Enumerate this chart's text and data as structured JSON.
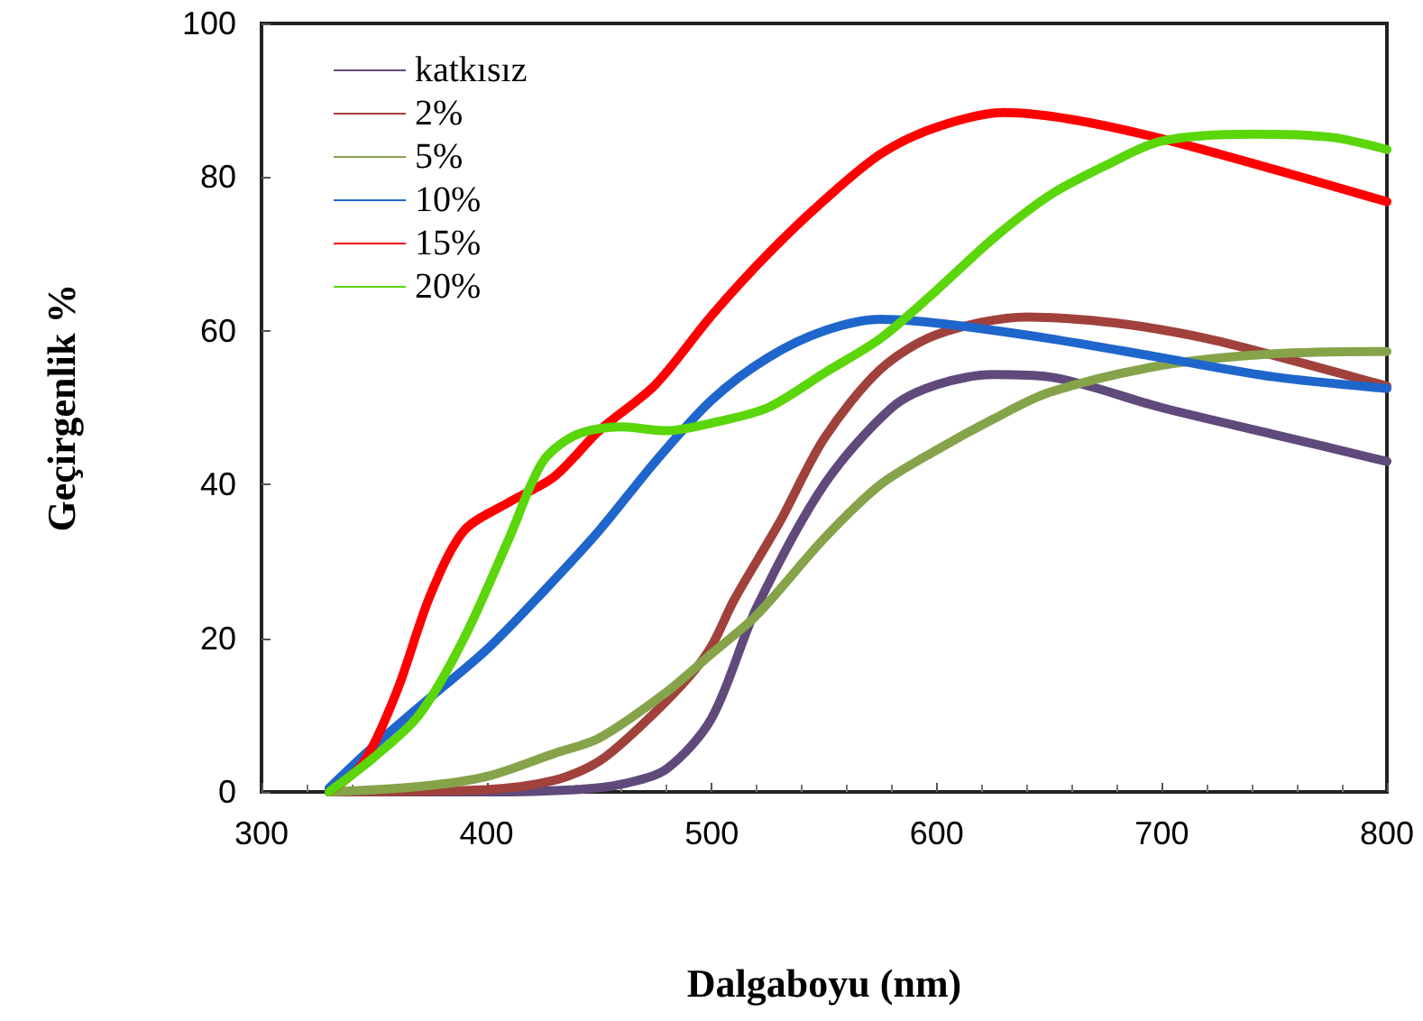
{
  "chart_data": {
    "type": "line",
    "xlabel": "Dalgaboyu (nm)",
    "ylabel": "Geçirgenlik %",
    "xlim": [
      300,
      800
    ],
    "xticks": [
      300,
      400,
      500,
      600,
      700,
      800
    ],
    "ylim": [
      0,
      100
    ],
    "yticks": [
      0,
      20,
      40,
      60,
      80,
      100
    ],
    "grid": false,
    "legend": "top left",
    "marker": "none",
    "series": [
      {
        "name": "katkısız",
        "color": "#604a7b",
        "x": [
          330,
          400,
          440,
          460,
          480,
          500,
          520,
          550,
          580,
          600,
          625,
          650,
          700,
          750,
          800
        ],
        "values": [
          0,
          0,
          0.3,
          1,
          3,
          9.6,
          24,
          40,
          50,
          53,
          54.3,
          54,
          50,
          46.5,
          43
        ]
      },
      {
        "name": "2%",
        "color": "#a0413c",
        "x": [
          330,
          400,
          430,
          450,
          470,
          490,
          500,
          510,
          530,
          550,
          575,
          600,
          640,
          680,
          720,
          760,
          800
        ],
        "values": [
          0,
          0.3,
          1.5,
          4,
          9,
          15,
          19,
          25,
          35,
          46,
          55,
          59.5,
          61.8,
          61,
          59,
          56,
          52.8
        ]
      },
      {
        "name": "5%",
        "color": "#86a34a",
        "x": [
          330,
          370,
          400,
          430,
          450,
          480,
          500,
          520,
          550,
          575,
          600,
          625,
          650,
          700,
          750,
          800
        ],
        "values": [
          0,
          0.7,
          2,
          5,
          7,
          13,
          18,
          23,
          33,
          40,
          44.5,
          48.5,
          52,
          55.5,
          57,
          57.3
        ]
      },
      {
        "name": "10%",
        "color": "#1f66cc",
        "x": [
          330,
          350,
          375,
          400,
          425,
          450,
          475,
          500,
          525,
          550,
          575,
          600,
          650,
          700,
          750,
          800
        ],
        "values": [
          0.5,
          6,
          12.3,
          18.5,
          26,
          34,
          43,
          51,
          56.5,
          60,
          61.5,
          61,
          59,
          56.5,
          54,
          52.5
        ]
      },
      {
        "name": "15%",
        "color": "#ff0000",
        "x": [
          330,
          345,
          360,
          375,
          390,
          410,
          430,
          450,
          475,
          500,
          525,
          550,
          575,
          600,
          630,
          660,
          700,
          750,
          800
        ],
        "values": [
          0,
          3.7,
          13,
          25.6,
          34,
          37.7,
          41,
          47,
          53,
          62,
          70,
          77,
          83,
          86.5,
          88.4,
          87.5,
          85,
          81,
          76.8
        ]
      },
      {
        "name": "20%",
        "color": "#5ad60a",
        "x": [
          330,
          350,
          370,
          390,
          410,
          425,
          440,
          460,
          480,
          500,
          525,
          550,
          575,
          600,
          625,
          650,
          675,
          700,
          740,
          775,
          800
        ],
        "values": [
          0,
          4.5,
          10,
          20,
          33,
          43,
          46.5,
          47.5,
          47,
          48,
          50,
          54.5,
          59,
          65.3,
          72,
          77.6,
          81.5,
          84.7,
          85.6,
          85.2,
          83.6
        ]
      }
    ]
  }
}
